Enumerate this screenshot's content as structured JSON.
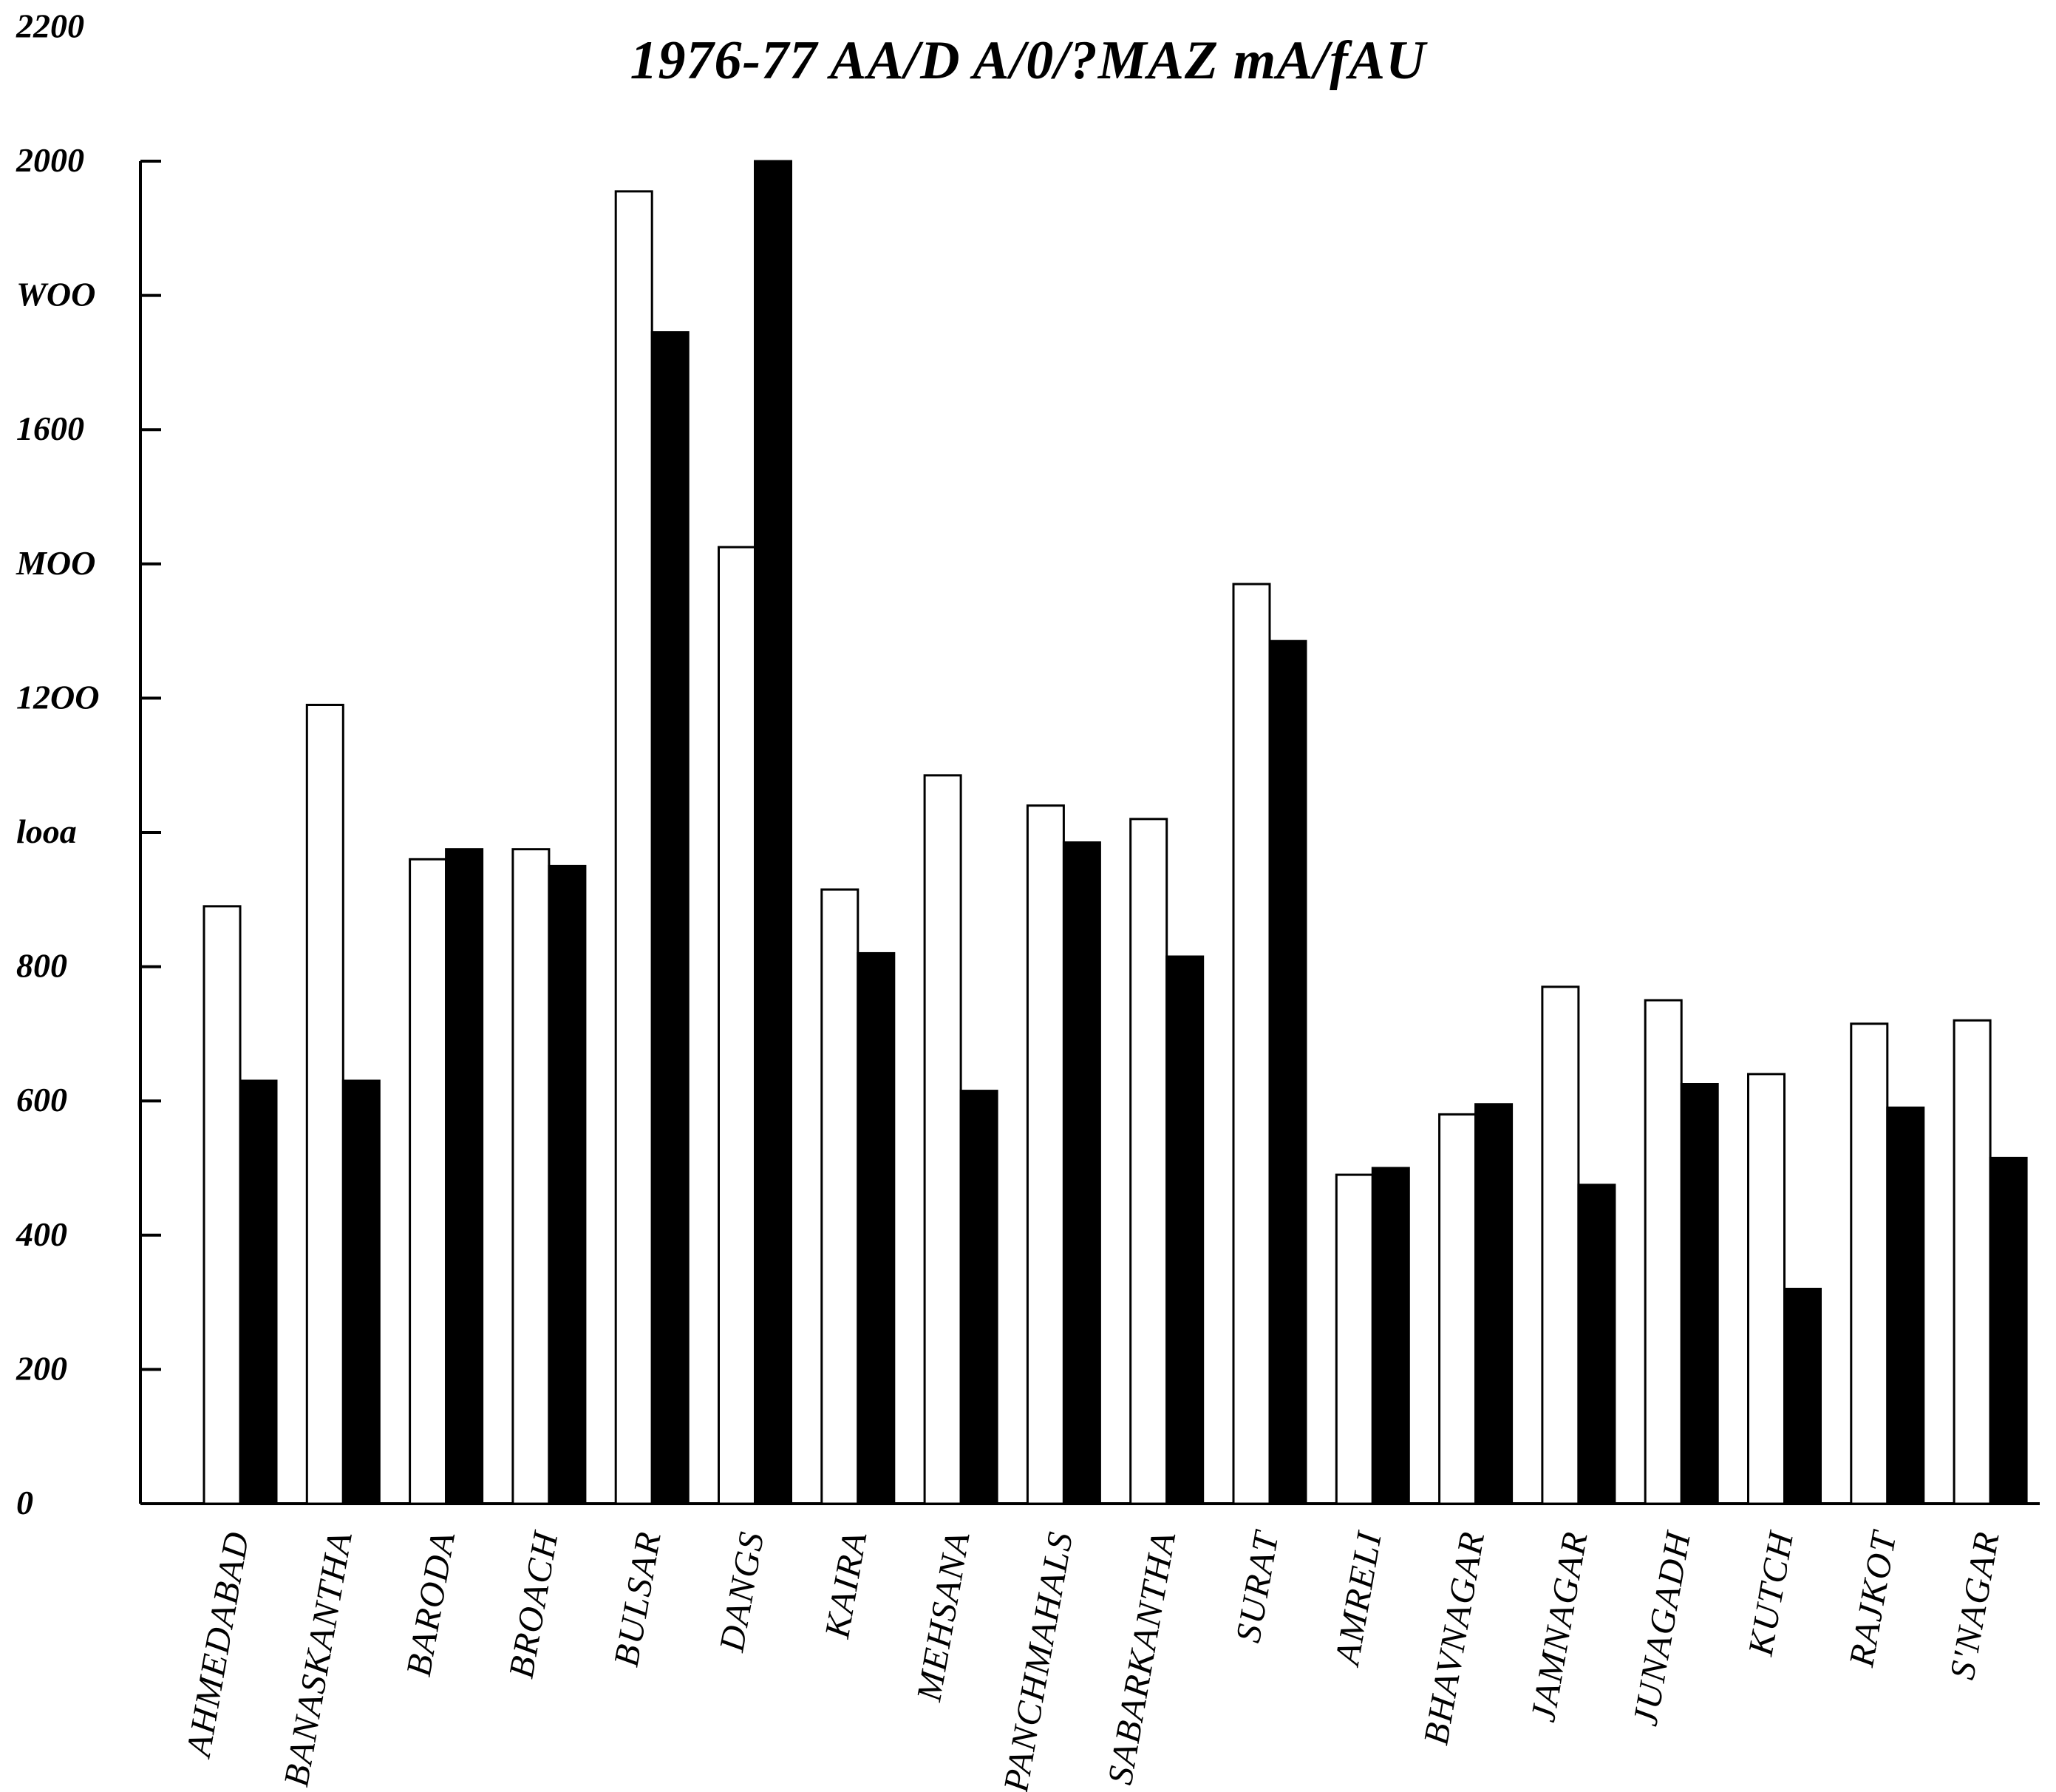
{
  "chart_data": {
    "type": "bar",
    "title": "1976-77 AA/D A/0/?MAZ mA/fAU",
    "xlabel": "",
    "ylabel": "",
    "ylim": [
      0,
      2200
    ],
    "y_ticks": [
      {
        "value": 0,
        "label": "0"
      },
      {
        "value": 200,
        "label": "200"
      },
      {
        "value": 400,
        "label": "400"
      },
      {
        "value": 600,
        "label": "600"
      },
      {
        "value": 800,
        "label": "800"
      },
      {
        "value": 1000,
        "label": "looa"
      },
      {
        "value": 1200,
        "label": "12OO"
      },
      {
        "value": 1400,
        "label": "MOO"
      },
      {
        "value": 1600,
        "label": "1600"
      },
      {
        "value": 1800,
        "label": "WOO"
      },
      {
        "value": 2000,
        "label": "2000"
      },
      {
        "value": 2200,
        "label": "2200"
      }
    ],
    "categories": [
      "AHMEDABAD",
      "BANASKANTHA",
      "BARODA",
      "BROACH",
      "BULSAR",
      "DANGS",
      "KAIRA",
      "MEHSANA",
      "PANCHMAHALS",
      "SABARKANTHA",
      "SURAT",
      "AMRELI",
      "BHAVNAGAR",
      "JAMNAGAR",
      "JUNAGADH",
      "KUTCH",
      "RAJKOT",
      "S'NAGAR"
    ],
    "series": [
      {
        "values": [
          890,
          1190,
          960,
          975,
          1955,
          1425,
          915,
          1085,
          1040,
          1020,
          1370,
          490,
          580,
          770,
          750,
          640,
          715,
          720
        ],
        "color": "#ffffff"
      },
      {
        "values": [
          630,
          630,
          975,
          950,
          1745,
          2000,
          820,
          615,
          985,
          815,
          1285,
          500,
          595,
          475,
          625,
          320,
          590,
          515
        ],
        "color": "#000000"
      }
    ],
    "grid": false,
    "legend": "none"
  }
}
